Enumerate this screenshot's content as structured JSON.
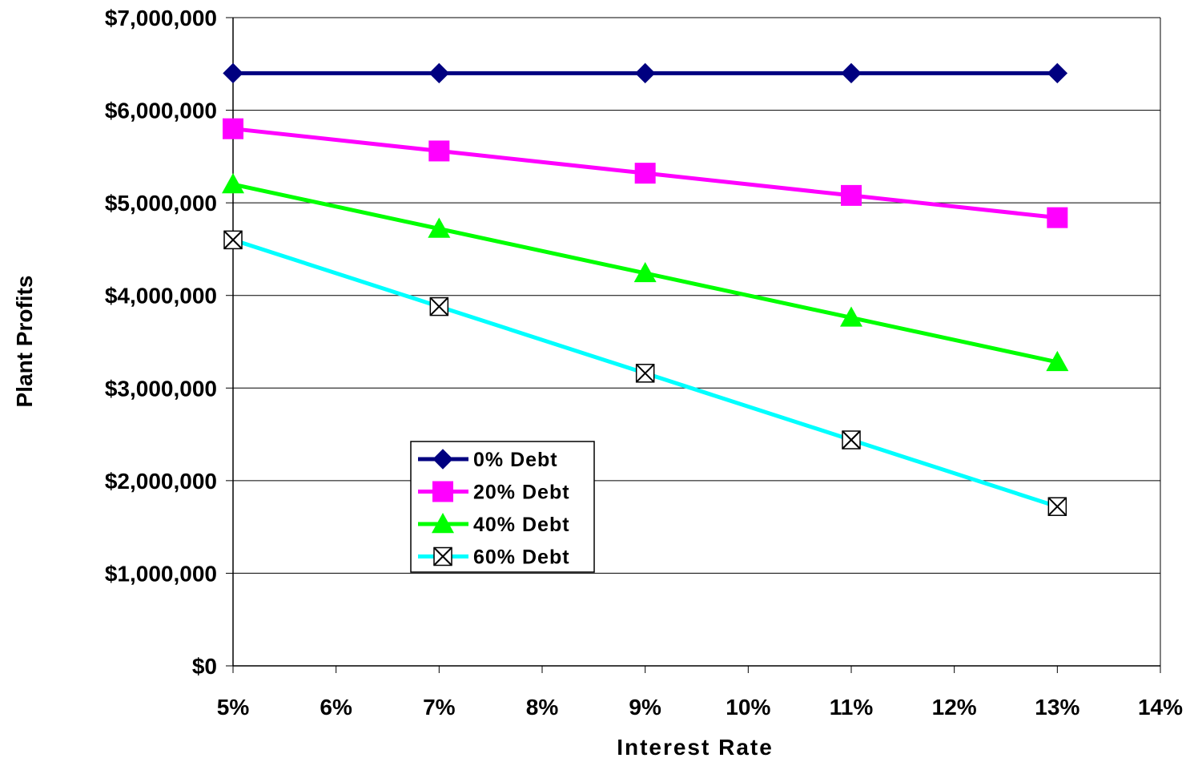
{
  "chart_data": {
    "type": "line",
    "title": "",
    "xlabel": "Interest Rate",
    "ylabel": "Plant Profits",
    "xlim": [
      5,
      14
    ],
    "ylim": [
      0,
      7000000
    ],
    "x_ticks": [
      5,
      6,
      7,
      8,
      9,
      10,
      11,
      12,
      13,
      14
    ],
    "x_tick_labels": [
      "5%",
      "6%",
      "7%",
      "8%",
      "9%",
      "10%",
      "11%",
      "12%",
      "13%",
      "14%"
    ],
    "y_ticks": [
      0,
      1000000,
      2000000,
      3000000,
      4000000,
      5000000,
      6000000,
      7000000
    ],
    "y_tick_labels": [
      "$0",
      "$1,000,000",
      "$2,000,000",
      "$3,000,000",
      "$4,000,000",
      "$5,000,000",
      "$6,000,000",
      "$7,000,000"
    ],
    "grid": "horizontal",
    "legend_position": "center-left",
    "x": [
      5,
      7,
      9,
      11,
      13
    ],
    "series": [
      {
        "name": "0% Debt",
        "color": "#000080",
        "marker": "diamond",
        "values": [
          6400000,
          6400000,
          6400000,
          6400000,
          6400000
        ]
      },
      {
        "name": "20% Debt",
        "color": "#FF00FF",
        "marker": "square",
        "values": [
          5800000,
          5560000,
          5320000,
          5080000,
          4840000
        ]
      },
      {
        "name": "40% Debt",
        "color": "#00FF00",
        "marker": "triangle",
        "values": [
          5200000,
          4720000,
          4240000,
          3760000,
          3280000
        ]
      },
      {
        "name": "60% Debt",
        "color": "#00FFFF",
        "marker": "x-square",
        "values": [
          4600000,
          3880000,
          3160000,
          2440000,
          1720000
        ]
      }
    ]
  }
}
